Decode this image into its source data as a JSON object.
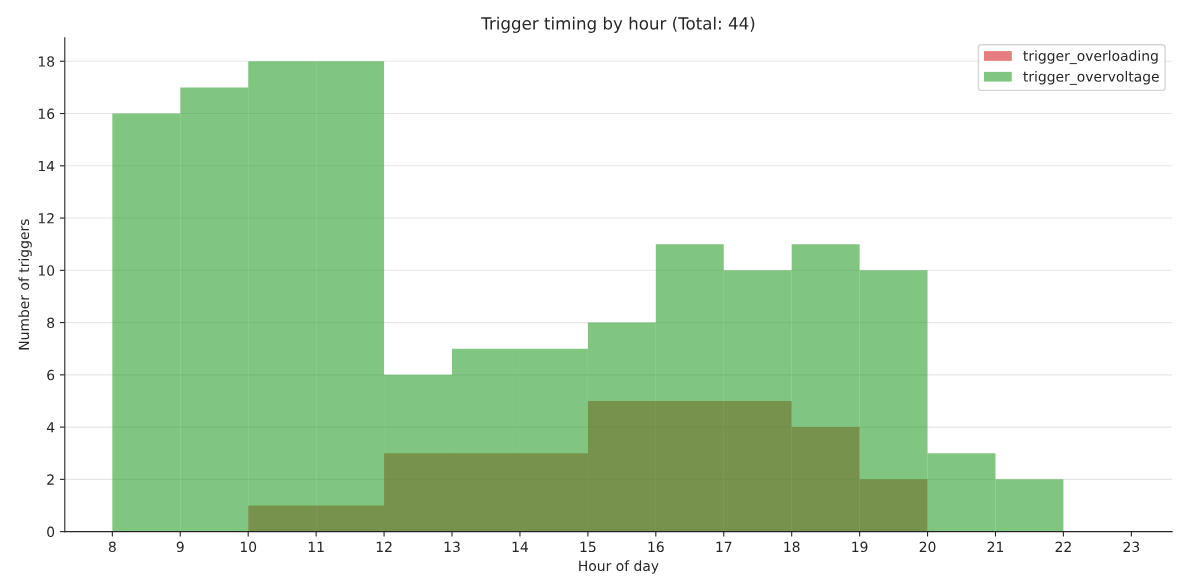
{
  "chart_data": {
    "type": "histogram",
    "title": "Trigger timing by hour (Total: 44)",
    "xlabel": "Hour of day",
    "ylabel": "Number of triggers",
    "bins": [
      8,
      9,
      10,
      11,
      12,
      13,
      14,
      15,
      16,
      17,
      18,
      19,
      20,
      21,
      22,
      23
    ],
    "series": [
      {
        "name": "trigger_overloading",
        "color": "#e67d7e",
        "values": [
          0,
          0,
          1,
          1,
          3,
          3,
          3,
          5,
          5,
          5,
          4,
          2,
          0,
          0,
          0
        ]
      },
      {
        "name": "trigger_overvoltage",
        "color": "#80c680",
        "values": [
          16,
          17,
          18,
          18,
          6,
          7,
          7,
          8,
          11,
          10,
          11,
          10,
          3,
          2,
          0
        ]
      }
    ],
    "xlim": [
      7.3,
      23.6
    ],
    "xticks": [
      8,
      9,
      10,
      11,
      12,
      13,
      14,
      15,
      16,
      17,
      18,
      19,
      20,
      21,
      22,
      23
    ],
    "ylim": [
      0,
      18.9
    ],
    "yticks": [
      0,
      2,
      4,
      6,
      8,
      10,
      12,
      14,
      16,
      18
    ],
    "grid": "y",
    "legend": "top right"
  }
}
